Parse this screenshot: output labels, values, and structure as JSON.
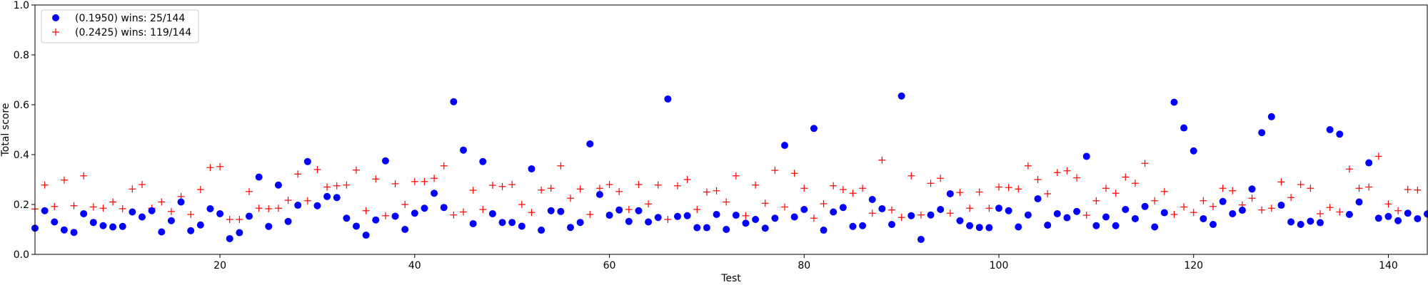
{
  "chart_data": {
    "type": "scatter",
    "title": "",
    "xlabel": "Test",
    "ylabel": "Total score",
    "xlim": [
      1,
      144
    ],
    "ylim": [
      0.0,
      1.0
    ],
    "x_ticks": [
      20,
      40,
      60,
      80,
      100,
      120,
      140
    ],
    "y_ticks": [
      0.0,
      0.2,
      0.4,
      0.6,
      0.8,
      1.0
    ],
    "x_tick_labels": [
      "20",
      "40",
      "60",
      "80",
      "100",
      "120",
      "140"
    ],
    "y_tick_labels": [
      "0.0",
      "0.2",
      "0.4",
      "0.6",
      "0.8",
      "1.0"
    ],
    "grid": false,
    "legend_position": "top-left",
    "series": [
      {
        "name": "(0.1950) wins: 25/144",
        "marker": "circle",
        "color": "#0000ff",
        "values": [
          0.105,
          0.175,
          0.13,
          0.098,
          0.088,
          0.163,
          0.128,
          0.115,
          0.11,
          0.112,
          0.17,
          0.15,
          0.175,
          0.09,
          0.135,
          0.21,
          0.095,
          0.118,
          0.183,
          0.163,
          0.063,
          0.087,
          0.153,
          0.31,
          0.112,
          0.278,
          0.132,
          0.197,
          0.372,
          0.195,
          0.232,
          0.228,
          0.145,
          0.113,
          0.077,
          0.138,
          0.375,
          0.153,
          0.1,
          0.165,
          0.185,
          0.245,
          0.188,
          0.612,
          0.418,
          0.123,
          0.372,
          0.163,
          0.128,
          0.128,
          0.113,
          0.343,
          0.097,
          0.175,
          0.172,
          0.108,
          0.128,
          0.443,
          0.24,
          0.157,
          0.178,
          0.132,
          0.175,
          0.13,
          0.148,
          0.623,
          0.152,
          0.155,
          0.107,
          0.107,
          0.16,
          0.1,
          0.157,
          0.125,
          0.14,
          0.105,
          0.145,
          0.437,
          0.15,
          0.18,
          0.505,
          0.097,
          0.17,
          0.188,
          0.112,
          0.115,
          0.22,
          0.183,
          0.12,
          0.635,
          0.155,
          0.06,
          0.158,
          0.18,
          0.243,
          0.135,
          0.115,
          0.108,
          0.107,
          0.185,
          0.175,
          0.11,
          0.158,
          0.223,
          0.117,
          0.163,
          0.147,
          0.172,
          0.393,
          0.115,
          0.15,
          0.115,
          0.18,
          0.143,
          0.192,
          0.11,
          0.167,
          0.61,
          0.507,
          0.415,
          0.143,
          0.12,
          0.212,
          0.163,
          0.177,
          0.262,
          0.488,
          0.552,
          0.197,
          0.13,
          0.12,
          0.133,
          0.127,
          0.5,
          0.482,
          0.16,
          0.21,
          0.367,
          0.145,
          0.152,
          0.135,
          0.165,
          0.143,
          0.162
        ]
      },
      {
        "name": "(0.2425) wins: 119/144",
        "marker": "plus",
        "color": "#ff0000",
        "values": [
          0.182,
          0.278,
          0.192,
          0.298,
          0.195,
          0.315,
          0.19,
          0.185,
          0.21,
          0.183,
          0.262,
          0.28,
          0.185,
          0.21,
          0.172,
          0.232,
          0.16,
          0.26,
          0.348,
          0.352,
          0.14,
          0.14,
          0.252,
          0.185,
          0.183,
          0.185,
          0.217,
          0.322,
          0.215,
          0.34,
          0.27,
          0.275,
          0.278,
          0.338,
          0.175,
          0.302,
          0.155,
          0.283,
          0.2,
          0.292,
          0.292,
          0.305,
          0.355,
          0.158,
          0.17,
          0.257,
          0.18,
          0.277,
          0.272,
          0.28,
          0.2,
          0.168,
          0.258,
          0.265,
          0.355,
          0.225,
          0.262,
          0.16,
          0.265,
          0.28,
          0.252,
          0.18,
          0.28,
          0.202,
          0.278,
          0.14,
          0.275,
          0.3,
          0.18,
          0.25,
          0.255,
          0.21,
          0.315,
          0.155,
          0.278,
          0.205,
          0.337,
          0.19,
          0.325,
          0.265,
          0.145,
          0.203,
          0.275,
          0.26,
          0.245,
          0.265,
          0.165,
          0.378,
          0.178,
          0.148,
          0.315,
          0.158,
          0.285,
          0.305,
          0.165,
          0.248,
          0.185,
          0.25,
          0.185,
          0.27,
          0.268,
          0.262,
          0.355,
          0.3,
          0.243,
          0.328,
          0.335,
          0.307,
          0.157,
          0.215,
          0.265,
          0.245,
          0.31,
          0.285,
          0.365,
          0.215,
          0.252,
          0.16,
          0.19,
          0.168,
          0.215,
          0.192,
          0.265,
          0.255,
          0.198,
          0.225,
          0.178,
          0.185,
          0.29,
          0.228,
          0.28,
          0.265,
          0.163,
          0.188,
          0.17,
          0.342,
          0.265,
          0.27,
          0.393,
          0.202,
          0.175,
          0.26,
          0.258,
          0.16
        ]
      }
    ]
  }
}
